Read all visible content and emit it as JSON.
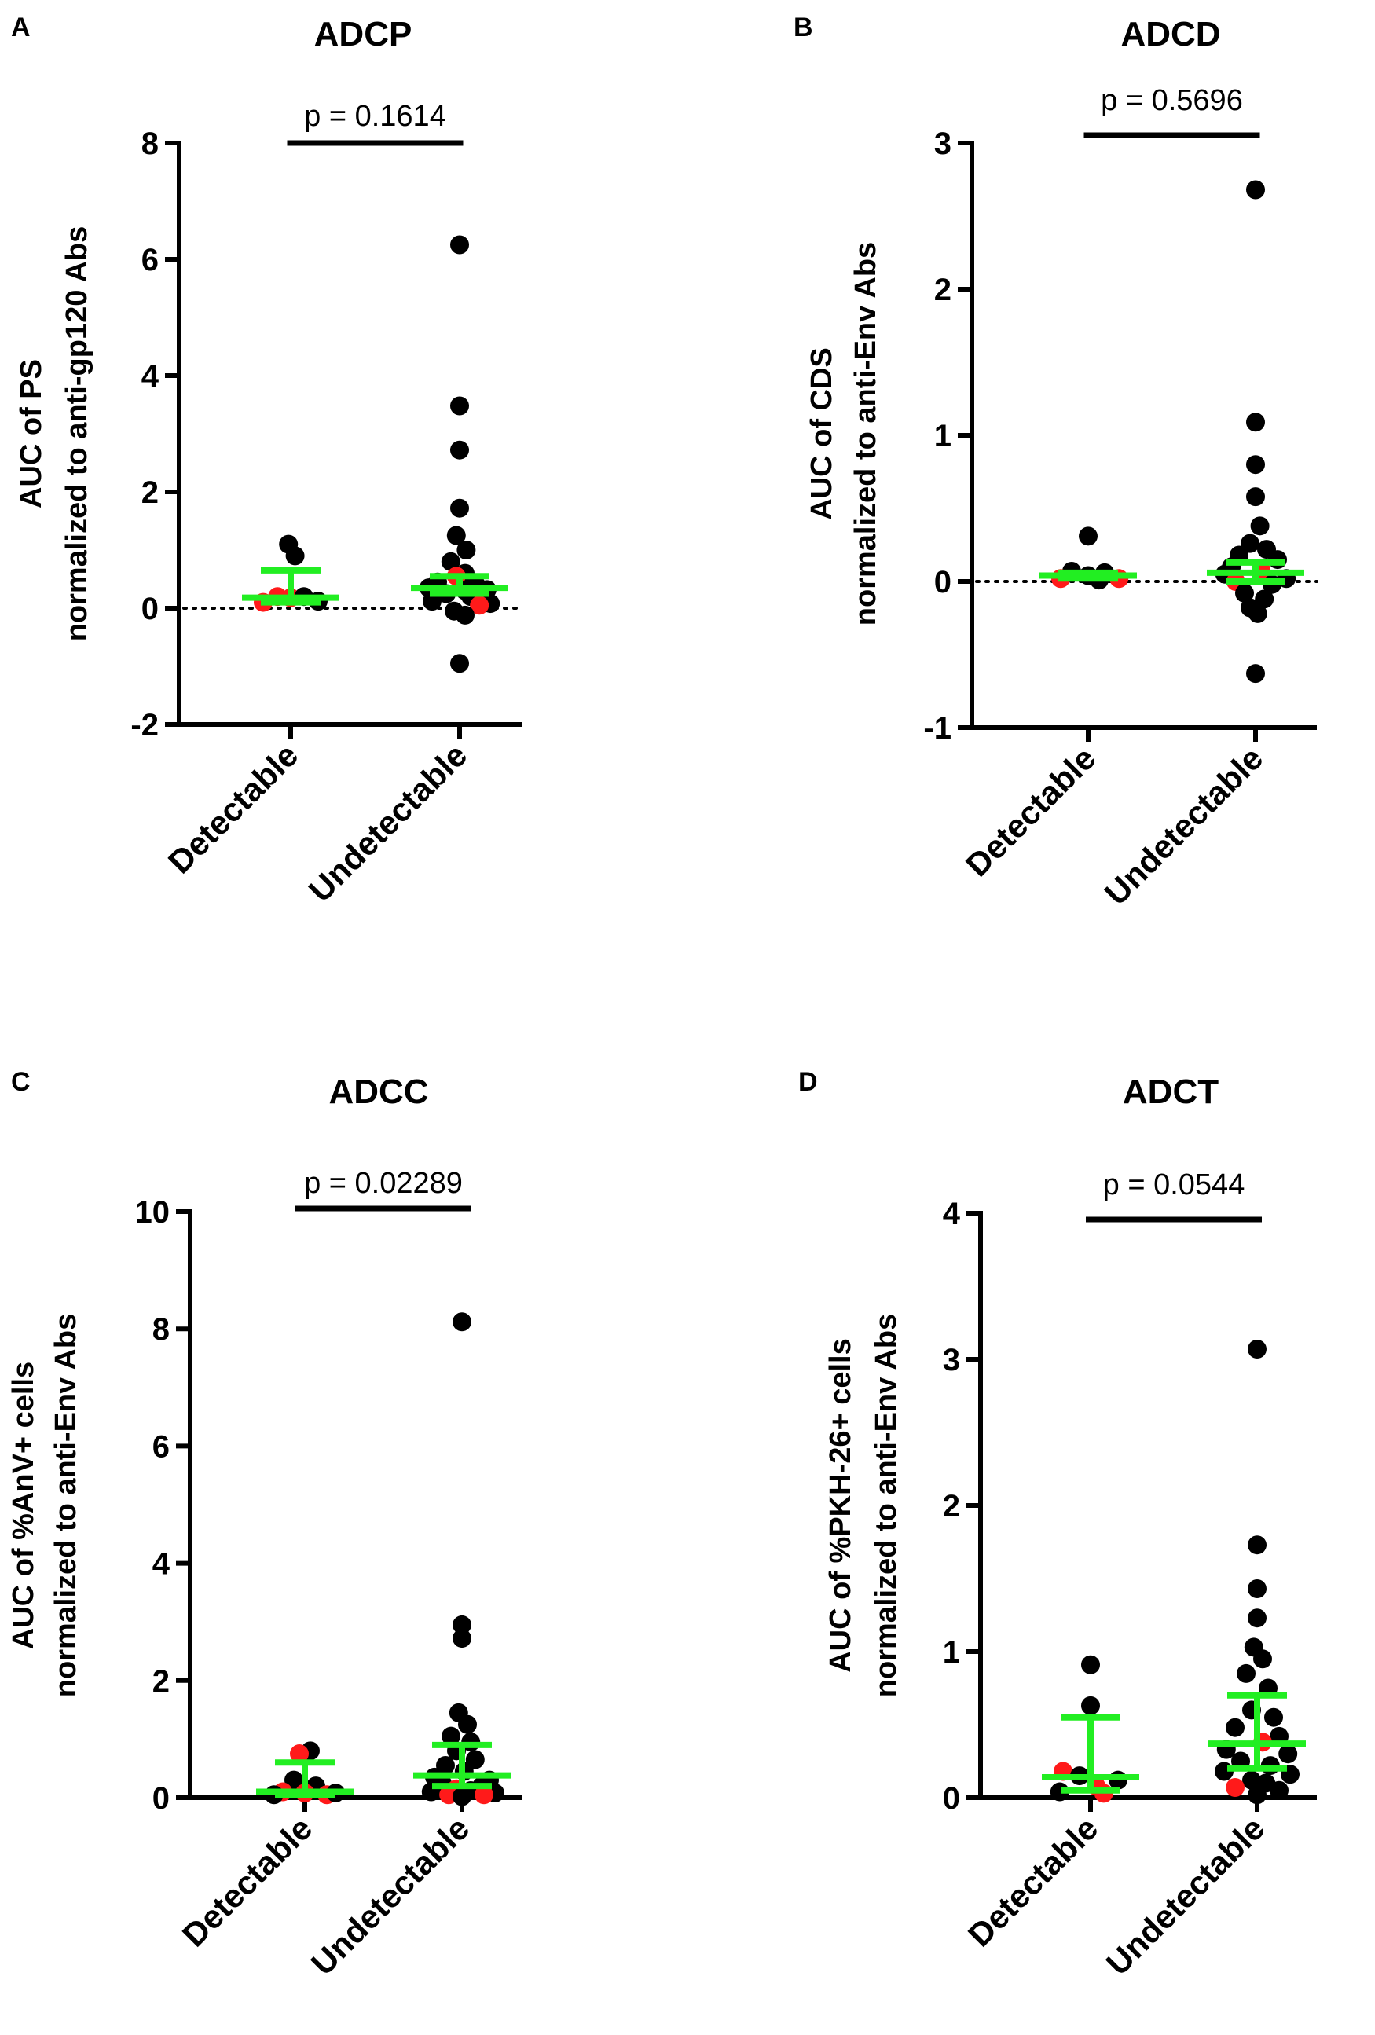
{
  "figure": {
    "background": "#ffffff",
    "colors": {
      "axis": "#000000",
      "dot_black": "#000000",
      "dot_red": "#ff1a1a",
      "summary": "#22ee22"
    }
  },
  "chart_data": [
    {
      "panel": "A",
      "type": "scatter",
      "title": "ADCP",
      "ylabel_line1": "AUC of PS",
      "ylabel_line2": "normalized to anti-gp120 Abs",
      "ylim": [
        -2,
        8
      ],
      "yticks": [
        -2,
        0,
        2,
        4,
        6,
        8
      ],
      "ytick_labels": [
        "-2",
        "0",
        "2",
        "4",
        "6",
        "8"
      ],
      "categories": [
        "Detectable",
        "Undetectable"
      ],
      "reference_line": 0,
      "p_value_label": "p = 0.1614",
      "summary": [
        {
          "median": 0.18,
          "q1": 0.1,
          "q3": 0.65
        },
        {
          "median": 0.35,
          "q1": 0.25,
          "q3": 0.55
        }
      ],
      "points": [
        [
          {
            "y": 1.1,
            "dx": -0.02,
            "color": "black"
          },
          {
            "y": 0.9,
            "dx": 0.04,
            "color": "black"
          },
          {
            "y": 0.2,
            "dx": -0.12,
            "color": "red"
          },
          {
            "y": 0.1,
            "dx": -0.25,
            "color": "red"
          },
          {
            "y": 0.18,
            "dx": 0.0,
            "color": "red"
          },
          {
            "y": 0.2,
            "dx": 0.12,
            "color": "black"
          },
          {
            "y": 0.12,
            "dx": 0.25,
            "color": "black"
          }
        ],
        [
          {
            "y": 6.25,
            "dx": 0.0,
            "color": "black"
          },
          {
            "y": 3.48,
            "dx": 0.0,
            "color": "black"
          },
          {
            "y": 2.72,
            "dx": 0.0,
            "color": "black"
          },
          {
            "y": 1.72,
            "dx": 0.0,
            "color": "black"
          },
          {
            "y": 1.25,
            "dx": -0.03,
            "color": "black"
          },
          {
            "y": 1.0,
            "dx": 0.06,
            "color": "black"
          },
          {
            "y": 0.8,
            "dx": -0.08,
            "color": "black"
          },
          {
            "y": 0.6,
            "dx": 0.05,
            "color": "black"
          },
          {
            "y": 0.55,
            "dx": -0.03,
            "color": "red"
          },
          {
            "y": 0.45,
            "dx": -0.2,
            "color": "black"
          },
          {
            "y": 0.4,
            "dx": 0.15,
            "color": "black"
          },
          {
            "y": 0.35,
            "dx": -0.28,
            "color": "black"
          },
          {
            "y": 0.32,
            "dx": 0.25,
            "color": "black"
          },
          {
            "y": 0.3,
            "dx": 0.05,
            "color": "black"
          },
          {
            "y": 0.25,
            "dx": -0.12,
            "color": "black"
          },
          {
            "y": 0.2,
            "dx": 0.1,
            "color": "black"
          },
          {
            "y": 0.12,
            "dx": -0.25,
            "color": "black"
          },
          {
            "y": 0.08,
            "dx": 0.28,
            "color": "black"
          },
          {
            "y": 0.05,
            "dx": 0.18,
            "color": "red"
          },
          {
            "y": -0.05,
            "dx": -0.05,
            "color": "black"
          },
          {
            "y": -0.12,
            "dx": 0.05,
            "color": "black"
          },
          {
            "y": -0.95,
            "dx": 0.0,
            "color": "black"
          }
        ]
      ]
    },
    {
      "panel": "B",
      "type": "scatter",
      "title": "ADCD",
      "ylabel_line1": "AUC of CDS",
      "ylabel_line2": "normalized to anti-Env Abs",
      "ylim": [
        -1,
        3
      ],
      "yticks": [
        -1,
        0,
        1,
        2,
        3
      ],
      "ytick_labels": [
        "-1",
        "0",
        "1",
        "2",
        "3"
      ],
      "categories": [
        "Detectable",
        "Undetectable"
      ],
      "reference_line": 0,
      "p_value_label": "p = 0.5696",
      "summary": [
        {
          "median": 0.04,
          "q1": 0.02,
          "q3": 0.06
        },
        {
          "median": 0.06,
          "q1": 0.0,
          "q3": 0.13
        }
      ],
      "points": [
        [
          {
            "y": 0.31,
            "dx": 0.0,
            "color": "black"
          },
          {
            "y": 0.07,
            "dx": -0.15,
            "color": "black"
          },
          {
            "y": 0.06,
            "dx": 0.15,
            "color": "black"
          },
          {
            "y": 0.02,
            "dx": -0.25,
            "color": "red"
          },
          {
            "y": 0.02,
            "dx": 0.28,
            "color": "red"
          },
          {
            "y": 0.04,
            "dx": 0.0,
            "color": "black"
          },
          {
            "y": 0.01,
            "dx": 0.1,
            "color": "black"
          }
        ],
        [
          {
            "y": 2.68,
            "dx": 0.0,
            "color": "black"
          },
          {
            "y": 1.09,
            "dx": 0.0,
            "color": "black"
          },
          {
            "y": 0.8,
            "dx": 0.0,
            "color": "black"
          },
          {
            "y": 0.58,
            "dx": 0.0,
            "color": "black"
          },
          {
            "y": 0.38,
            "dx": 0.04,
            "color": "black"
          },
          {
            "y": 0.26,
            "dx": -0.05,
            "color": "black"
          },
          {
            "y": 0.22,
            "dx": 0.1,
            "color": "black"
          },
          {
            "y": 0.18,
            "dx": -0.15,
            "color": "black"
          },
          {
            "y": 0.15,
            "dx": 0.2,
            "color": "black"
          },
          {
            "y": 0.1,
            "dx": -0.22,
            "color": "black"
          },
          {
            "y": 0.08,
            "dx": 0.05,
            "color": "red"
          },
          {
            "y": 0.05,
            "dx": -0.28,
            "color": "black"
          },
          {
            "y": 0.02,
            "dx": 0.28,
            "color": "black"
          },
          {
            "y": 0.0,
            "dx": -0.18,
            "color": "red"
          },
          {
            "y": -0.02,
            "dx": 0.15,
            "color": "black"
          },
          {
            "y": -0.08,
            "dx": -0.1,
            "color": "black"
          },
          {
            "y": -0.12,
            "dx": 0.08,
            "color": "black"
          },
          {
            "y": -0.18,
            "dx": -0.05,
            "color": "black"
          },
          {
            "y": -0.22,
            "dx": 0.02,
            "color": "black"
          },
          {
            "y": -0.63,
            "dx": 0.0,
            "color": "black"
          }
        ]
      ]
    },
    {
      "panel": "C",
      "type": "scatter",
      "title": "ADCC",
      "ylabel_line1": "AUC of %AnV+ cells",
      "ylabel_line2": "normalized to anti-Env Abs",
      "ylim": [
        0,
        10
      ],
      "yticks": [
        0,
        2,
        4,
        6,
        8,
        10
      ],
      "ytick_labels": [
        "0",
        "2",
        "4",
        "6",
        "8",
        "10"
      ],
      "categories": [
        "Detectable",
        "Undetectable"
      ],
      "reference_line": null,
      "p_value_label": "p = 0.02289",
      "summary": [
        {
          "median": 0.1,
          "q1": 0.05,
          "q3": 0.6
        },
        {
          "median": 0.38,
          "q1": 0.2,
          "q3": 0.9
        }
      ],
      "points": [
        [
          {
            "y": 0.8,
            "dx": 0.05,
            "color": "black"
          },
          {
            "y": 0.75,
            "dx": -0.05,
            "color": "red"
          },
          {
            "y": 0.3,
            "dx": -0.1,
            "color": "black"
          },
          {
            "y": 0.2,
            "dx": 0.1,
            "color": "black"
          },
          {
            "y": 0.1,
            "dx": -0.2,
            "color": "red"
          },
          {
            "y": 0.08,
            "dx": 0.0,
            "color": "red"
          },
          {
            "y": 0.05,
            "dx": 0.2,
            "color": "red"
          },
          {
            "y": 0.05,
            "dx": -0.28,
            "color": "black"
          },
          {
            "y": 0.08,
            "dx": 0.28,
            "color": "black"
          }
        ],
        [
          {
            "y": 8.12,
            "dx": 0.0,
            "color": "black"
          },
          {
            "y": 2.95,
            "dx": 0.0,
            "color": "black"
          },
          {
            "y": 2.72,
            "dx": 0.0,
            "color": "black"
          },
          {
            "y": 1.45,
            "dx": -0.03,
            "color": "black"
          },
          {
            "y": 1.25,
            "dx": 0.05,
            "color": "black"
          },
          {
            "y": 1.05,
            "dx": -0.1,
            "color": "black"
          },
          {
            "y": 0.95,
            "dx": 0.08,
            "color": "black"
          },
          {
            "y": 0.8,
            "dx": -0.05,
            "color": "black"
          },
          {
            "y": 0.65,
            "dx": 0.12,
            "color": "black"
          },
          {
            "y": 0.55,
            "dx": -0.15,
            "color": "black"
          },
          {
            "y": 0.45,
            "dx": 0.02,
            "color": "black"
          },
          {
            "y": 0.35,
            "dx": -0.25,
            "color": "black"
          },
          {
            "y": 0.3,
            "dx": 0.25,
            "color": "black"
          },
          {
            "y": 0.25,
            "dx": -0.18,
            "color": "black"
          },
          {
            "y": 0.2,
            "dx": 0.18,
            "color": "black"
          },
          {
            "y": 0.15,
            "dx": -0.05,
            "color": "red"
          },
          {
            "y": 0.12,
            "dx": 0.08,
            "color": "black"
          },
          {
            "y": 0.1,
            "dx": -0.28,
            "color": "black"
          },
          {
            "y": 0.08,
            "dx": 0.3,
            "color": "black"
          },
          {
            "y": 0.05,
            "dx": -0.12,
            "color": "red"
          },
          {
            "y": 0.05,
            "dx": 0.2,
            "color": "red"
          },
          {
            "y": 0.02,
            "dx": 0.0,
            "color": "black"
          }
        ]
      ]
    },
    {
      "panel": "D",
      "type": "scatter",
      "title": "ADCT",
      "ylabel_line1": "AUC of %PKH-26+ cells",
      "ylabel_line2": "normalized to anti-Env Abs",
      "ylim": [
        0,
        4
      ],
      "yticks": [
        0,
        1,
        2,
        3,
        4
      ],
      "ytick_labels": [
        "0",
        "1",
        "2",
        "3",
        "4"
      ],
      "categories": [
        "Detectable",
        "Undetectable"
      ],
      "reference_line": null,
      "p_value_label": "p = 0.0544",
      "summary": [
        {
          "median": 0.14,
          "q1": 0.05,
          "q3": 0.55
        },
        {
          "median": 0.37,
          "q1": 0.2,
          "q3": 0.7
        }
      ],
      "points": [
        [
          {
            "y": 0.91,
            "dx": 0.0,
            "color": "black"
          },
          {
            "y": 0.63,
            "dx": 0.0,
            "color": "black"
          },
          {
            "y": 0.18,
            "dx": -0.25,
            "color": "red"
          },
          {
            "y": 0.15,
            "dx": -0.1,
            "color": "black"
          },
          {
            "y": 0.12,
            "dx": 0.25,
            "color": "black"
          },
          {
            "y": 0.08,
            "dx": 0.05,
            "color": "red"
          },
          {
            "y": 0.04,
            "dx": -0.28,
            "color": "black"
          },
          {
            "y": 0.03,
            "dx": 0.12,
            "color": "red"
          }
        ],
        [
          {
            "y": 3.07,
            "dx": 0.0,
            "color": "black"
          },
          {
            "y": 1.73,
            "dx": 0.0,
            "color": "black"
          },
          {
            "y": 1.43,
            "dx": 0.0,
            "color": "black"
          },
          {
            "y": 1.23,
            "dx": 0.0,
            "color": "black"
          },
          {
            "y": 1.03,
            "dx": -0.03,
            "color": "black"
          },
          {
            "y": 0.95,
            "dx": 0.05,
            "color": "black"
          },
          {
            "y": 0.85,
            "dx": -0.1,
            "color": "black"
          },
          {
            "y": 0.75,
            "dx": 0.1,
            "color": "black"
          },
          {
            "y": 0.6,
            "dx": -0.05,
            "color": "black"
          },
          {
            "y": 0.55,
            "dx": 0.15,
            "color": "black"
          },
          {
            "y": 0.48,
            "dx": -0.2,
            "color": "black"
          },
          {
            "y": 0.42,
            "dx": 0.2,
            "color": "black"
          },
          {
            "y": 0.38,
            "dx": 0.05,
            "color": "red"
          },
          {
            "y": 0.33,
            "dx": -0.28,
            "color": "black"
          },
          {
            "y": 0.3,
            "dx": 0.28,
            "color": "black"
          },
          {
            "y": 0.25,
            "dx": -0.15,
            "color": "black"
          },
          {
            "y": 0.22,
            "dx": 0.12,
            "color": "black"
          },
          {
            "y": 0.18,
            "dx": -0.3,
            "color": "black"
          },
          {
            "y": 0.16,
            "dx": 0.3,
            "color": "black"
          },
          {
            "y": 0.12,
            "dx": -0.05,
            "color": "black"
          },
          {
            "y": 0.1,
            "dx": 0.08,
            "color": "black"
          },
          {
            "y": 0.07,
            "dx": -0.2,
            "color": "red"
          },
          {
            "y": 0.05,
            "dx": 0.2,
            "color": "black"
          },
          {
            "y": 0.02,
            "dx": 0.0,
            "color": "black"
          }
        ]
      ]
    }
  ]
}
